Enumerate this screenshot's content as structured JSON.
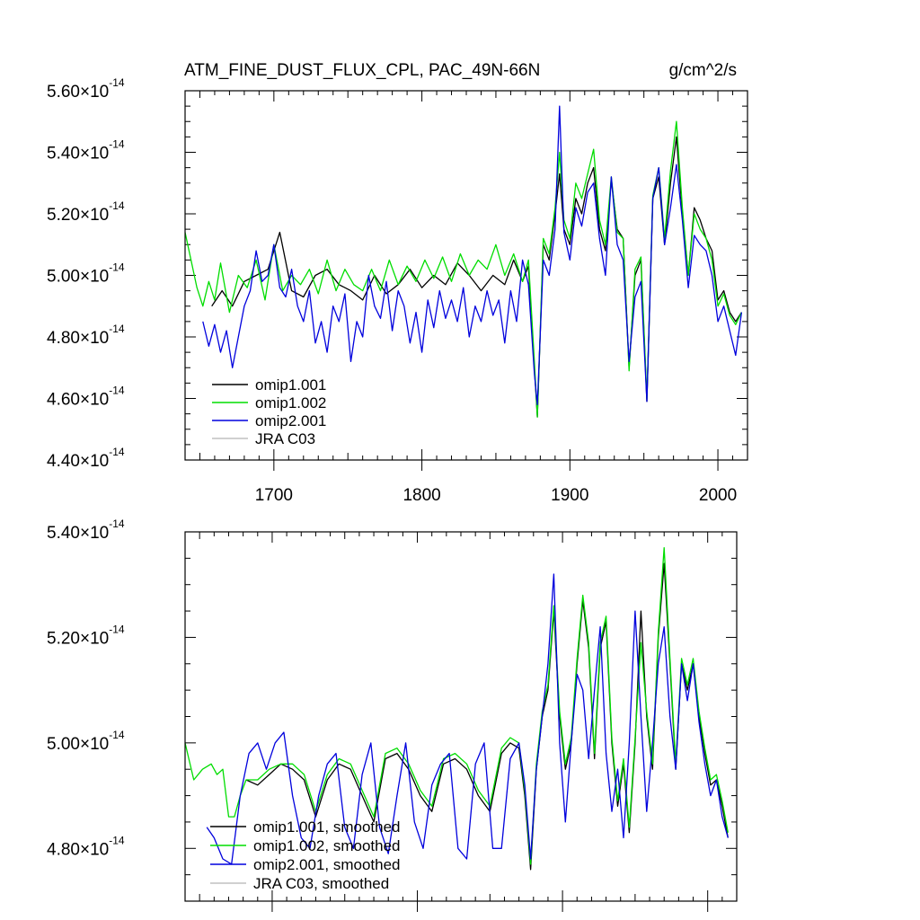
{
  "chart_data": [
    {
      "type": "line",
      "title": "ATM_FINE_DUST_FLUX_CPL, PAC_49N-66N",
      "units": "g/cm^2/s",
      "xlim": [
        1640,
        2020
      ],
      "xticks": [
        1700,
        1800,
        1900,
        2000
      ],
      "xtick_labels": [
        "1700",
        "1800",
        "1900",
        "2000"
      ],
      "ylim": [
        4.4,
        5.6
      ],
      "yticks": [
        4.4,
        4.6,
        4.8,
        5.0,
        5.2,
        5.4,
        5.6
      ],
      "ytick_labels": [
        {
          "mant": "4.40",
          "exp": "-14"
        },
        {
          "mant": "4.60",
          "exp": "-14"
        },
        {
          "mant": "4.80",
          "exp": "-14"
        },
        {
          "mant": "5.00",
          "exp": "-14"
        },
        {
          "mant": "5.20",
          "exp": "-14"
        },
        {
          "mant": "5.40",
          "exp": "-14"
        },
        {
          "mant": "5.60",
          "exp": "-14"
        }
      ],
      "legend": [
        "omip1.001",
        "omip1.002",
        "omip2.001",
        "JRA C03"
      ],
      "series": [
        {
          "name": "omip1.001",
          "color": "#000000",
          "x": [
            1658,
            1665,
            1672,
            1680,
            1688,
            1696,
            1704,
            1712,
            1720,
            1728,
            1736,
            1744,
            1752,
            1760,
            1768,
            1776,
            1784,
            1792,
            1800,
            1808,
            1816,
            1824,
            1832,
            1840,
            1848,
            1856,
            1862,
            1868,
            1872,
            1876,
            1878,
            1882,
            1886,
            1890,
            1893,
            1896,
            1900,
            1904,
            1908,
            1912,
            1916,
            1920,
            1924,
            1928,
            1932,
            1936,
            1940,
            1944,
            1948,
            1952,
            1956,
            1960,
            1964,
            1968,
            1972,
            1976,
            1980,
            1984,
            1988,
            1992,
            1996,
            2000,
            2004,
            2008,
            2012,
            2016
          ],
          "y": [
            4.9,
            4.95,
            4.9,
            4.98,
            5.0,
            5.02,
            5.14,
            4.95,
            4.93,
            5.0,
            5.02,
            4.97,
            4.95,
            4.92,
            5.0,
            4.94,
            4.97,
            5.02,
            4.96,
            5.0,
            4.97,
            5.04,
            5.0,
            4.95,
            5.0,
            4.97,
            5.05,
            4.98,
            5.03,
            4.7,
            4.54,
            5.1,
            5.05,
            5.2,
            5.33,
            5.15,
            5.1,
            5.25,
            5.2,
            5.3,
            5.35,
            5.15,
            5.08,
            5.31,
            5.15,
            5.12,
            4.7,
            5.0,
            5.05,
            4.59,
            5.25,
            5.32,
            5.1,
            5.3,
            5.45,
            5.2,
            5.0,
            5.22,
            5.18,
            5.12,
            5.08,
            4.92,
            4.95,
            4.88,
            4.85,
            4.88
          ]
        },
        {
          "name": "omip1.002",
          "color": "#00dd00",
          "x": [
            1640,
            1644,
            1648,
            1652,
            1656,
            1660,
            1664,
            1670,
            1676,
            1682,
            1688,
            1694,
            1700,
            1706,
            1712,
            1718,
            1724,
            1730,
            1736,
            1742,
            1748,
            1754,
            1760,
            1766,
            1772,
            1778,
            1784,
            1790,
            1796,
            1802,
            1808,
            1814,
            1820,
            1826,
            1832,
            1838,
            1844,
            1850,
            1856,
            1862,
            1868,
            1872,
            1876,
            1878,
            1882,
            1886,
            1890,
            1893,
            1896,
            1900,
            1904,
            1908,
            1912,
            1916,
            1920,
            1924,
            1928,
            1932,
            1936,
            1940,
            1944,
            1948,
            1952,
            1956,
            1960,
            1964,
            1968,
            1972,
            1976,
            1980,
            1984,
            1988,
            1992,
            1996,
            2000,
            2004,
            2008,
            2012,
            2016
          ],
          "y": [
            5.14,
            5.05,
            4.96,
            4.9,
            4.98,
            4.92,
            5.04,
            4.88,
            5.0,
            4.96,
            5.05,
            4.92,
            5.1,
            4.95,
            5.0,
            4.97,
            5.02,
            4.94,
            5.05,
            4.95,
            5.02,
            4.97,
            4.95,
            5.02,
            4.95,
            5.05,
            4.97,
            5.03,
            4.98,
            5.05,
            4.99,
            5.06,
            4.98,
            5.07,
            5.0,
            5.05,
            5.02,
            5.1,
            5.0,
            5.07,
            4.98,
            5.05,
            4.72,
            4.54,
            5.12,
            5.07,
            5.22,
            5.4,
            5.18,
            5.12,
            5.3,
            5.25,
            5.33,
            5.41,
            5.18,
            5.1,
            5.32,
            5.14,
            5.12,
            4.69,
            5.02,
            5.06,
            4.6,
            5.26,
            5.35,
            5.12,
            5.34,
            5.5,
            5.22,
            5.0,
            5.2,
            5.15,
            5.12,
            5.05,
            4.9,
            4.94,
            4.87,
            4.84,
            4.88
          ]
        },
        {
          "name": "omip2.001",
          "color": "#0000dd",
          "x": [
            1652,
            1656,
            1660,
            1664,
            1668,
            1672,
            1676,
            1680,
            1684,
            1688,
            1692,
            1696,
            1700,
            1704,
            1708,
            1712,
            1716,
            1720,
            1724,
            1728,
            1732,
            1736,
            1740,
            1744,
            1748,
            1752,
            1756,
            1760,
            1764,
            1768,
            1772,
            1776,
            1780,
            1784,
            1788,
            1792,
            1796,
            1800,
            1804,
            1808,
            1812,
            1816,
            1820,
            1824,
            1828,
            1832,
            1836,
            1840,
            1844,
            1848,
            1852,
            1856,
            1860,
            1864,
            1868,
            1872,
            1876,
            1878,
            1882,
            1886,
            1890,
            1893,
            1896,
            1900,
            1904,
            1908,
            1912,
            1916,
            1920,
            1924,
            1928,
            1932,
            1936,
            1940,
            1944,
            1948,
            1952,
            1956,
            1960,
            1964,
            1968,
            1972,
            1976,
            1980,
            1984,
            1988,
            1992,
            1996,
            2000,
            2004,
            2008,
            2012,
            2016
          ],
          "y": [
            4.85,
            4.77,
            4.84,
            4.75,
            4.82,
            4.7,
            4.8,
            4.9,
            4.95,
            5.08,
            4.98,
            5.0,
            5.1,
            4.96,
            4.93,
            5.02,
            4.9,
            4.85,
            4.95,
            4.78,
            4.85,
            4.75,
            4.9,
            4.85,
            4.94,
            4.72,
            4.85,
            4.8,
            5.0,
            4.9,
            4.86,
            4.98,
            4.82,
            4.95,
            4.9,
            4.78,
            4.88,
            4.75,
            4.92,
            4.83,
            4.95,
            4.86,
            4.92,
            4.85,
            4.96,
            4.8,
            4.9,
            4.85,
            4.95,
            4.87,
            4.92,
            4.78,
            4.95,
            4.85,
            5.05,
            4.97,
            4.68,
            4.58,
            5.05,
            5.0,
            5.15,
            5.55,
            5.14,
            5.05,
            5.22,
            5.16,
            5.27,
            5.3,
            5.12,
            5.0,
            5.32,
            5.1,
            5.05,
            4.72,
            4.93,
            4.98,
            4.59,
            5.25,
            5.35,
            5.1,
            5.22,
            5.36,
            5.18,
            4.96,
            5.13,
            5.1,
            5.08,
            5.0,
            4.85,
            4.9,
            4.82,
            4.74,
            4.88
          ]
        },
        {
          "name": "JRA C03",
          "color": "#c0c0c0",
          "x": [],
          "y": []
        }
      ]
    },
    {
      "type": "line",
      "xlim": [
        1640,
        2020
      ],
      "xticks": [
        1700,
        1800,
        1900,
        2000
      ],
      "ylim": [
        4.7,
        5.4
      ],
      "yticks": [
        4.8,
        5.0,
        5.2,
        5.4
      ],
      "ytick_labels": [
        {
          "mant": "4.80",
          "exp": "-14"
        },
        {
          "mant": "5.00",
          "exp": "-14"
        },
        {
          "mant": "5.20",
          "exp": "-14"
        },
        {
          "mant": "5.40",
          "exp": "-14"
        }
      ],
      "legend": [
        "omip1.001, smoothed",
        "omip1.002, smoothed",
        "omip2.001, smoothed",
        "JRA C03, smoothed"
      ],
      "series": [
        {
          "name": "omip1.001, smoothed",
          "color": "#000000",
          "x": [
            1682,
            1690,
            1698,
            1706,
            1714,
            1722,
            1730,
            1738,
            1746,
            1754,
            1762,
            1770,
            1778,
            1786,
            1794,
            1802,
            1810,
            1818,
            1826,
            1834,
            1842,
            1850,
            1858,
            1864,
            1870,
            1874,
            1878,
            1882,
            1886,
            1890,
            1894,
            1898,
            1902,
            1906,
            1910,
            1914,
            1918,
            1922,
            1926,
            1930,
            1934,
            1938,
            1942,
            1946,
            1950,
            1954,
            1958,
            1962,
            1966,
            1970,
            1974,
            1978,
            1982,
            1986,
            1990,
            1994,
            1998,
            2002,
            2006,
            2010,
            2014
          ],
          "y": [
            4.93,
            4.92,
            4.94,
            4.96,
            4.95,
            4.93,
            4.86,
            4.93,
            4.96,
            4.95,
            4.9,
            4.85,
            4.97,
            4.98,
            4.95,
            4.9,
            4.87,
            4.96,
            4.97,
            4.95,
            4.9,
            4.87,
            4.98,
            5.0,
            4.99,
            4.9,
            4.76,
            4.95,
            5.05,
            5.1,
            5.25,
            5.05,
            4.95,
            5.0,
            5.15,
            5.27,
            5.18,
            4.97,
            5.18,
            5.23,
            5.0,
            4.88,
            4.96,
            4.83,
            5.0,
            5.25,
            5.05,
            4.95,
            5.2,
            5.34,
            5.15,
            4.95,
            5.15,
            5.1,
            5.15,
            5.05,
            4.98,
            4.92,
            4.93,
            4.88,
            4.82
          ]
        },
        {
          "name": "omip1.002, smoothed",
          "color": "#00dd00",
          "x": [
            1640,
            1646,
            1652,
            1658,
            1662,
            1666,
            1670,
            1674,
            1678,
            1682,
            1690,
            1698,
            1706,
            1714,
            1722,
            1730,
            1738,
            1746,
            1754,
            1762,
            1770,
            1778,
            1786,
            1794,
            1802,
            1810,
            1818,
            1826,
            1834,
            1842,
            1850,
            1858,
            1864,
            1870,
            1874,
            1878,
            1882,
            1886,
            1890,
            1894,
            1898,
            1902,
            1906,
            1910,
            1914,
            1918,
            1922,
            1926,
            1930,
            1934,
            1938,
            1942,
            1946,
            1950,
            1954,
            1958,
            1962,
            1966,
            1970,
            1974,
            1978,
            1982,
            1986,
            1990,
            1994,
            1998,
            2002,
            2006,
            2010,
            2014
          ],
          "y": [
            5.0,
            4.93,
            4.95,
            4.96,
            4.94,
            4.95,
            4.86,
            4.86,
            4.9,
            4.93,
            4.93,
            4.95,
            4.96,
            4.96,
            4.94,
            4.87,
            4.94,
            4.97,
            4.96,
            4.91,
            4.86,
            4.98,
            4.99,
            4.96,
            4.91,
            4.88,
            4.97,
            4.98,
            4.96,
            4.91,
            4.88,
            4.99,
            5.01,
            5.0,
            4.91,
            4.77,
            4.96,
            5.06,
            5.11,
            5.26,
            5.06,
            4.96,
            5.01,
            5.16,
            5.28,
            5.19,
            4.98,
            5.19,
            5.24,
            5.01,
            4.89,
            4.97,
            4.84,
            5.01,
            5.19,
            5.06,
            4.96,
            5.21,
            5.37,
            5.16,
            4.96,
            5.16,
            5.11,
            5.16,
            5.06,
            4.99,
            4.93,
            4.94,
            4.89,
            4.83
          ]
        },
        {
          "name": "omip2.001, smoothed",
          "color": "#0000dd",
          "x": [
            1655,
            1660,
            1666,
            1672,
            1678,
            1684,
            1690,
            1696,
            1702,
            1708,
            1714,
            1720,
            1726,
            1732,
            1738,
            1744,
            1750,
            1756,
            1762,
            1768,
            1774,
            1780,
            1786,
            1792,
            1798,
            1804,
            1810,
            1816,
            1822,
            1828,
            1834,
            1840,
            1846,
            1852,
            1858,
            1864,
            1870,
            1874,
            1878,
            1882,
            1886,
            1890,
            1894,
            1898,
            1902,
            1906,
            1910,
            1914,
            1918,
            1922,
            1926,
            1930,
            1934,
            1938,
            1942,
            1946,
            1950,
            1954,
            1958,
            1962,
            1966,
            1970,
            1974,
            1978,
            1982,
            1986,
            1990,
            1994,
            1998,
            2002,
            2006,
            2010,
            2014
          ],
          "y": [
            4.84,
            4.82,
            4.78,
            4.77,
            4.9,
            4.98,
            5.0,
            4.95,
            5.0,
            5.02,
            4.9,
            4.82,
            4.8,
            4.9,
            4.96,
            4.98,
            4.84,
            4.8,
            4.94,
            5.0,
            4.84,
            4.79,
            4.9,
            5.0,
            4.85,
            4.8,
            4.92,
            4.96,
            4.98,
            4.8,
            4.78,
            4.96,
            5.0,
            4.8,
            4.8,
            4.97,
            5.0,
            4.92,
            4.78,
            4.95,
            5.05,
            5.15,
            5.32,
            5.0,
            4.85,
            5.0,
            5.13,
            5.1,
            4.97,
            5.1,
            5.22,
            4.98,
            4.87,
            4.95,
            4.82,
            5.0,
            5.25,
            5.05,
            4.87,
            5.0,
            5.15,
            5.22,
            5.05,
            4.95,
            5.15,
            5.08,
            5.15,
            5.04,
            4.96,
            4.9,
            4.93,
            4.86,
            4.82
          ]
        },
        {
          "name": "JRA C03, smoothed",
          "color": "#c0c0c0",
          "x": [],
          "y": []
        }
      ]
    }
  ]
}
